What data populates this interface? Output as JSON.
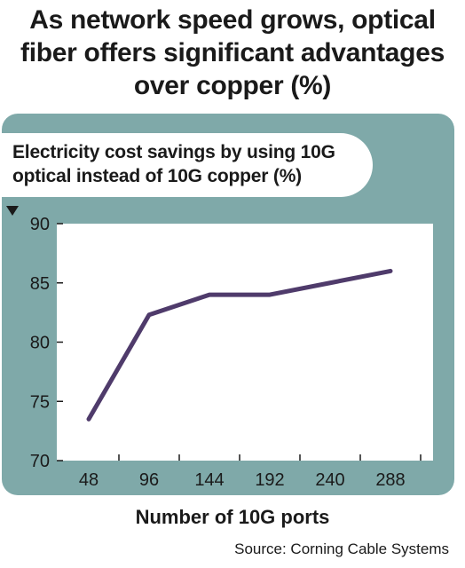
{
  "title": "As network speed grows, optical\nfiber offers significant advantages\nover copper (%)",
  "subtitle": "Electricity cost savings by using 10G\noptical instead of 10G copper (%)",
  "source": "Source: Corning Cable Systems",
  "colors": {
    "panel": "#7fa9a9",
    "plot": "#ffffff",
    "line": "#4f3b6b"
  },
  "chart_data": {
    "type": "line",
    "title": "Electricity cost savings by using 10G optical instead of 10G copper (%)",
    "xlabel": "Number of 10G ports",
    "ylabel": "",
    "categories": [
      "48",
      "96",
      "144",
      "192",
      "240",
      "288"
    ],
    "x": [
      48,
      96,
      144,
      192,
      240,
      288
    ],
    "y": [
      73.5,
      82.3,
      84.0,
      84.0,
      85.0,
      86.0
    ],
    "ylim": [
      70,
      90
    ],
    "yticks": [
      70,
      75,
      80,
      85,
      90
    ],
    "grid": false,
    "legend": "none"
  }
}
